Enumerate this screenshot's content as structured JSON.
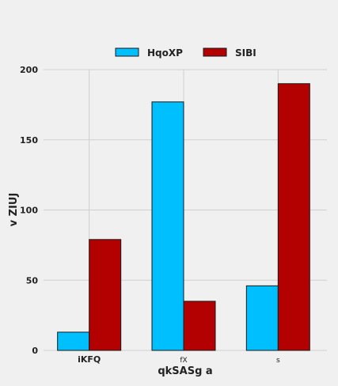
{
  "chart_data": {
    "type": "bar",
    "categories": [
      "iKFQ",
      "fX",
      "s"
    ],
    "series": [
      {
        "name": "HqoXP",
        "values": [
          13,
          177,
          46
        ],
        "color": "#00bfff"
      },
      {
        "name": "SIBI",
        "values": [
          79,
          35,
          190
        ],
        "color": "#b30000"
      }
    ],
    "xlabel": "qkSASg a",
    "ylabel": "v ZIUJ",
    "ylim": [
      0,
      200
    ],
    "yticks": [
      0,
      50,
      100,
      150,
      200
    ],
    "grid": true,
    "legend_position": "top-center"
  }
}
